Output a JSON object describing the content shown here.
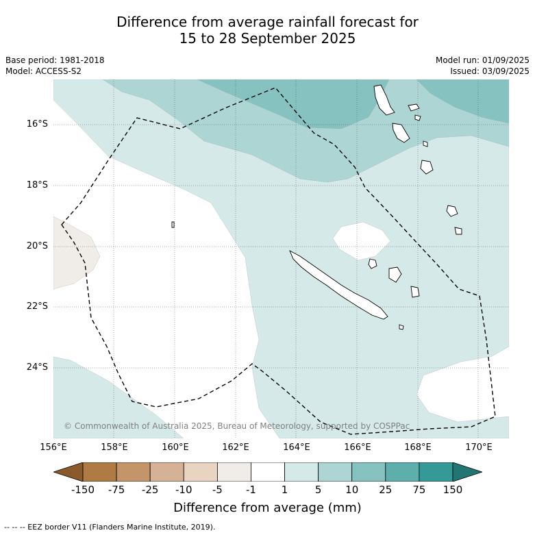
{
  "title_line1": "Difference from average rainfall forecast for",
  "title_line2": "15 to 28 September 2025",
  "base_period": "Base period: 1981-2018",
  "model": "Model: ACCESS-S2",
  "model_run": "Model run: 01/09/2025",
  "issued": "Issued: 03/09/2025",
  "lat_labels": [
    "16°S",
    "18°S",
    "20°S",
    "22°S",
    "24°S"
  ],
  "lon_labels": [
    "156°E",
    "158°E",
    "160°E",
    "162°E",
    "164°E",
    "166°E",
    "168°E",
    "170°E"
  ],
  "credit": "© Commonwealth of Australia 2025, Bureau of Meteorology, supported by COSPPac",
  "colorbar": {
    "labels": [
      "-150",
      "-75",
      "-25",
      "-10",
      "-5",
      "-1",
      "1",
      "5",
      "10",
      "25",
      "75",
      "150"
    ],
    "colors": [
      "#8b5a2b",
      "#b07a45",
      "#c39568",
      "#d5b295",
      "#e8d4c0",
      "#f0ede8",
      "#ffffff",
      "#d5e9e8",
      "#acd5d4",
      "#85c2c0",
      "#5eaeac",
      "#359a97",
      "#217572"
    ],
    "title": "Difference from average (mm)"
  },
  "footer": "-- -- -- EEZ border V11 (Flanders Marine Institute, 2019)."
}
